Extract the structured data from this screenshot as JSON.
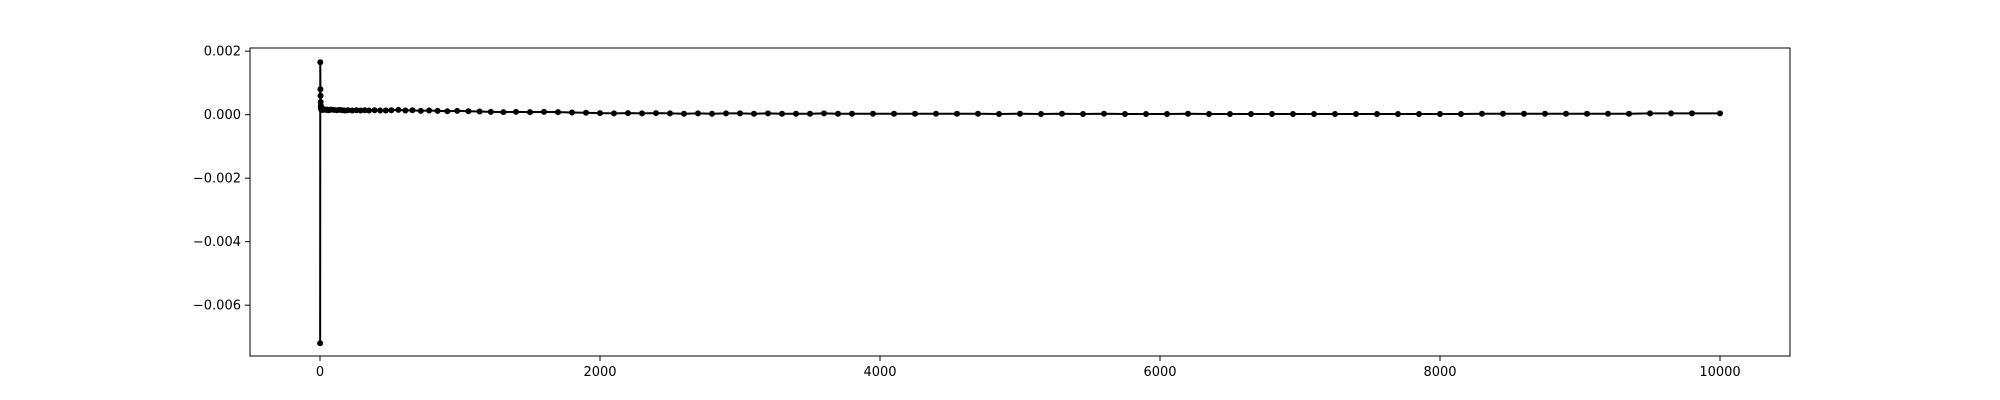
{
  "chart_data": {
    "type": "line",
    "title": "",
    "xlabel": "",
    "ylabel": "",
    "xlim": [
      -500,
      10500
    ],
    "ylim": [
      -0.0076,
      0.0021
    ],
    "x_ticks": [
      0,
      2000,
      4000,
      6000,
      8000,
      10000
    ],
    "x_tick_labels": [
      "0",
      "2000",
      "4000",
      "6000",
      "8000",
      "10000"
    ],
    "y_ticks": [
      0.002,
      0.0,
      -0.002,
      -0.004,
      -0.006
    ],
    "y_tick_labels": [
      "0.002",
      "0.000",
      "−0.002",
      "−0.004",
      "−0.006"
    ],
    "grid": false,
    "legend": "none",
    "line_color": "#000000",
    "marker": "circle",
    "series": [
      {
        "x": [
          1,
          2,
          3,
          4,
          5,
          6,
          7,
          8,
          9,
          10,
          12,
          14,
          16,
          18,
          20,
          25,
          30,
          40,
          50,
          60,
          70,
          80,
          100,
          120,
          140,
          160,
          180,
          200,
          230,
          260,
          290,
          320,
          350,
          390,
          430,
          470,
          510,
          560,
          610,
          660,
          720,
          780,
          840,
          910,
          980,
          1060,
          1140,
          1220,
          1310,
          1400,
          1500,
          1600,
          1700,
          1800,
          1900,
          2000,
          2100,
          2200,
          2300,
          2400,
          2500,
          2600,
          2700,
          2800,
          2900,
          3000,
          3100,
          3200,
          3300,
          3400,
          3500,
          3600,
          3700,
          3800,
          3950,
          4100,
          4250,
          4400,
          4550,
          4700,
          4850,
          5000,
          5150,
          5300,
          5450,
          5600,
          5750,
          5900,
          6050,
          6200,
          6350,
          6500,
          6650,
          6800,
          6950,
          7100,
          7250,
          7400,
          7550,
          7700,
          7850,
          8000,
          8150,
          8300,
          8450,
          8600,
          8750,
          8900,
          9050,
          9200,
          9350,
          9500,
          9650,
          9800,
          10000
        ],
        "y": [
          -0.0072,
          0.00165,
          0.0008,
          0.0006,
          0.0004,
          0.00028,
          0.0002,
          0.00025,
          0.00018,
          0.00015,
          0.0002,
          0.00018,
          0.00016,
          0.00017,
          0.00015,
          0.00016,
          0.00017,
          0.00015,
          0.00016,
          0.00014,
          0.00015,
          0.00016,
          0.00015,
          0.00014,
          0.00015,
          0.00014,
          0.00013,
          0.00014,
          0.00013,
          0.00014,
          0.00013,
          0.00014,
          0.00013,
          0.00014,
          0.00013,
          0.00013,
          0.00014,
          0.00015,
          0.00013,
          0.00014,
          0.00012,
          0.00013,
          0.00012,
          0.00011,
          0.00012,
          0.00011,
          0.0001,
          9e-05,
          8e-05,
          9e-05,
          8e-05,
          9e-05,
          8e-05,
          7e-05,
          6e-05,
          5e-05,
          4e-05,
          5e-05,
          4e-05,
          5e-05,
          4e-05,
          3e-05,
          4e-05,
          3e-05,
          4e-05,
          4e-05,
          3e-05,
          4e-05,
          3e-05,
          3e-05,
          3e-05,
          4e-05,
          3e-05,
          3e-05,
          3e-05,
          3e-05,
          3e-05,
          3e-05,
          3e-05,
          3e-05,
          2e-05,
          3e-05,
          2e-05,
          3e-05,
          2e-05,
          3e-05,
          2e-05,
          2e-05,
          2e-05,
          3e-05,
          2e-05,
          2e-05,
          2e-05,
          2e-05,
          2e-05,
          2e-05,
          2e-05,
          2e-05,
          2e-05,
          2e-05,
          2e-05,
          2e-05,
          2e-05,
          3e-05,
          3e-05,
          3e-05,
          3e-05,
          3e-05,
          3e-05,
          3e-05,
          3e-05,
          4e-05,
          4e-05,
          4e-05,
          4e-05
        ]
      }
    ]
  }
}
